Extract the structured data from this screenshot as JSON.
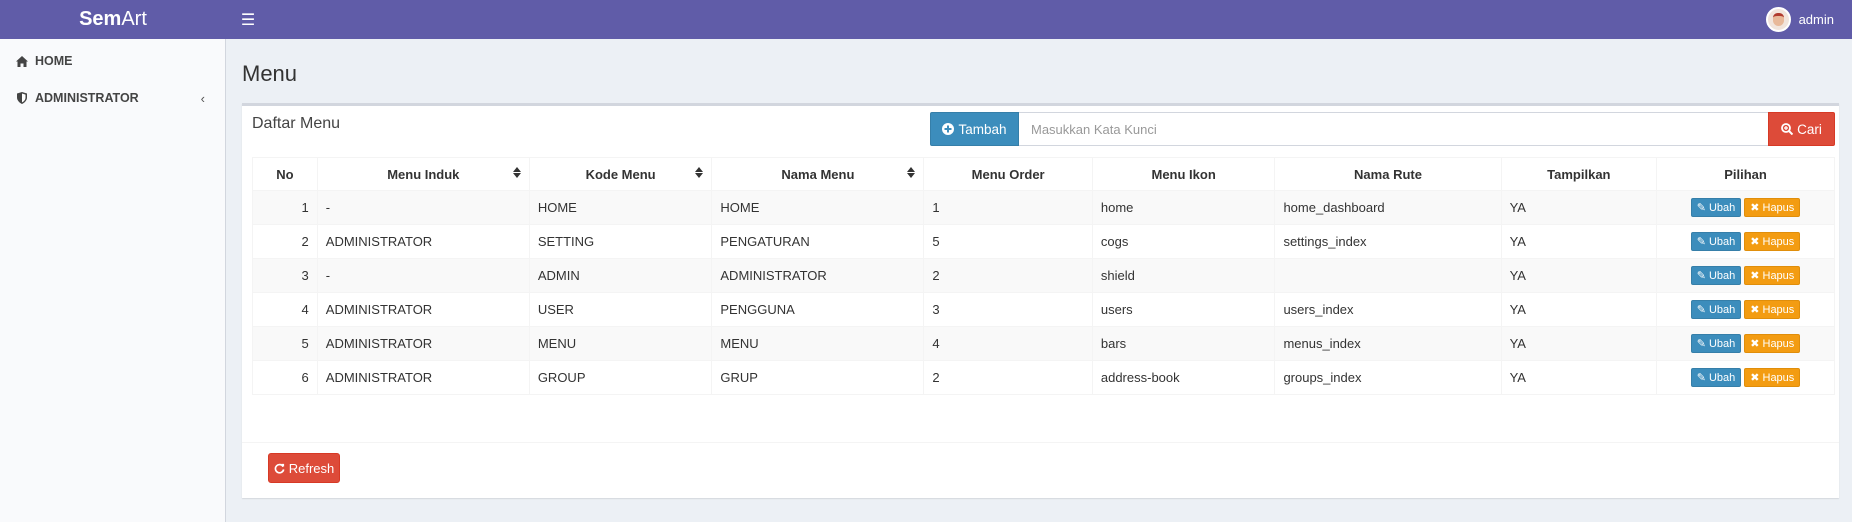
{
  "header": {
    "logo_bold": "Sem",
    "logo_rest": "Art",
    "menu_toggle_icon": "bars-icon",
    "username": "admin"
  },
  "sidebar": {
    "items": [
      {
        "label": "HOME",
        "icon": "home-icon"
      },
      {
        "label": "ADMINISTRATOR",
        "icon": "shield-icon",
        "chevron": "‹"
      }
    ]
  },
  "page": {
    "title": "Menu",
    "box_title": "Daftar Menu"
  },
  "toolbar": {
    "add_label": "Tambah",
    "search_placeholder": "Masukkan Kata Kunci",
    "search_label": "Cari"
  },
  "table": {
    "headers": [
      "No",
      "Menu Induk",
      "Kode Menu",
      "Nama Menu",
      "Menu Order",
      "Menu Ikon",
      "Nama Rute",
      "Tampilkan",
      "Pilihan"
    ],
    "rows": [
      {
        "no": "1",
        "parent": "-",
        "code": "HOME",
        "name": "HOME",
        "order": "1",
        "icon": "home",
        "route": "home_dashboard",
        "show": "YA"
      },
      {
        "no": "2",
        "parent": "ADMINISTRATOR",
        "code": "SETTING",
        "name": "PENGATURAN",
        "order": "5",
        "icon": "cogs",
        "route": "settings_index",
        "show": "YA"
      },
      {
        "no": "3",
        "parent": "-",
        "code": "ADMIN",
        "name": "ADMINISTRATOR",
        "order": "2",
        "icon": "shield",
        "route": "",
        "show": "YA"
      },
      {
        "no": "4",
        "parent": "ADMINISTRATOR",
        "code": "USER",
        "name": "PENGGUNA",
        "order": "3",
        "icon": "users",
        "route": "users_index",
        "show": "YA"
      },
      {
        "no": "5",
        "parent": "ADMINISTRATOR",
        "code": "MENU",
        "name": "MENU",
        "order": "4",
        "icon": "bars",
        "route": "menus_index",
        "show": "YA"
      },
      {
        "no": "6",
        "parent": "ADMINISTRATOR",
        "code": "GROUP",
        "name": "GRUP",
        "order": "2",
        "icon": "address-book",
        "route": "groups_index",
        "show": "YA"
      }
    ],
    "edit_label": "Ubah",
    "delete_label": "Hapus"
  },
  "footer": {
    "refresh_label": "Refresh"
  },
  "colors": {
    "header_bg": "#605ca8",
    "primary": "#3c8dbc",
    "danger": "#dd4b39",
    "warning": "#f39c12",
    "page_bg": "#ecf0f5"
  }
}
